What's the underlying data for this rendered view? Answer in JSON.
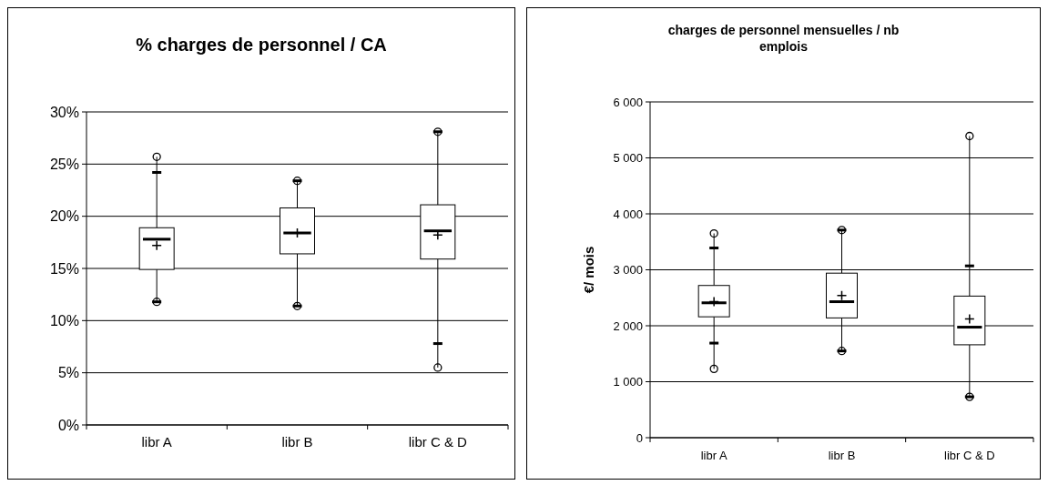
{
  "chart_data": [
    {
      "type": "box",
      "title": "% charges de personnel / CA",
      "categories": [
        "libr A",
        "libr B",
        "libr C & D"
      ],
      "ylim": [
        0,
        30
      ],
      "yticks": [
        {
          "value": 0,
          "label": "0%"
        },
        {
          "value": 5,
          "label": "5%"
        },
        {
          "value": 10,
          "label": "10%"
        },
        {
          "value": 15,
          "label": "15%"
        },
        {
          "value": 20,
          "label": "20%"
        },
        {
          "value": 25,
          "label": "25%"
        },
        {
          "value": 30,
          "label": "30%"
        }
      ],
      "grid": "y",
      "boxes": [
        {
          "low": 11.8,
          "q1": 14.9,
          "median": 17.8,
          "q3": 18.9,
          "high": 25.7,
          "mean": 17.2
        },
        {
          "low": 11.4,
          "q1": 16.4,
          "median": 18.4,
          "q3": 20.8,
          "high": 23.4,
          "mean": 18.4
        },
        {
          "low": 5.5,
          "q1": 15.9,
          "median": 18.6,
          "q3": 21.1,
          "high": 28.1,
          "mean": 18.2
        }
      ],
      "series": [
        {
          "type": "scatter",
          "color": "#000000",
          "x": [
            "libr A",
            "libr A",
            "libr B",
            "libr B",
            "libr C & D",
            "libr C & D"
          ],
          "values": [
            24.2,
            11.8,
            23.4,
            11.4,
            28.1,
            7.8
          ]
        },
        {
          "type": "scatter",
          "marker": "circle",
          "color": "#000000",
          "x": [
            "libr A",
            "libr A",
            "libr B",
            "libr B",
            "libr C & D",
            "libr C & D"
          ],
          "values": [
            25.7,
            11.8,
            23.4,
            11.4,
            28.1,
            5.5
          ]
        }
      ]
    },
    {
      "type": "box",
      "title": "charges de personnel mensuelles / nb emplois",
      "ylabel": "€/ mois",
      "categories": [
        "libr A",
        "libr B",
        "libr C & D"
      ],
      "ylim": [
        0,
        6000
      ],
      "yticks": [
        {
          "value": 0,
          "label": "0"
        },
        {
          "value": 1000,
          "label": "1 000"
        },
        {
          "value": 2000,
          "label": "2 000"
        },
        {
          "value": 3000,
          "label": "3 000"
        },
        {
          "value": 4000,
          "label": "4 000"
        },
        {
          "value": 5000,
          "label": "5 000"
        },
        {
          "value": 6000,
          "label": "6 000"
        }
      ],
      "grid": "y",
      "boxes": [
        {
          "low": 1230,
          "q1": 2160,
          "median": 2410,
          "q3": 2720,
          "high": 3650,
          "mean": 2430
        },
        {
          "low": 1550,
          "q1": 2140,
          "median": 2430,
          "q3": 2940,
          "high": 3710,
          "mean": 2540
        },
        {
          "low": 730,
          "q1": 1660,
          "median": 1975,
          "q3": 2530,
          "high": 5390,
          "mean": 2120
        }
      ],
      "series": [
        {
          "type": "scatter",
          "color": "#000000",
          "x": [
            "libr A",
            "libr A",
            "libr B",
            "libr B",
            "libr C & D",
            "libr C & D"
          ],
          "values": [
            3390,
            1690,
            3710,
            1550,
            3070,
            730
          ]
        },
        {
          "type": "scatter",
          "marker": "circle",
          "color": "#000000",
          "x": [
            "libr A",
            "libr A",
            "libr B",
            "libr B",
            "libr C & D",
            "libr C & D"
          ],
          "values": [
            3650,
            1230,
            3710,
            1550,
            5390,
            730
          ]
        }
      ]
    }
  ]
}
